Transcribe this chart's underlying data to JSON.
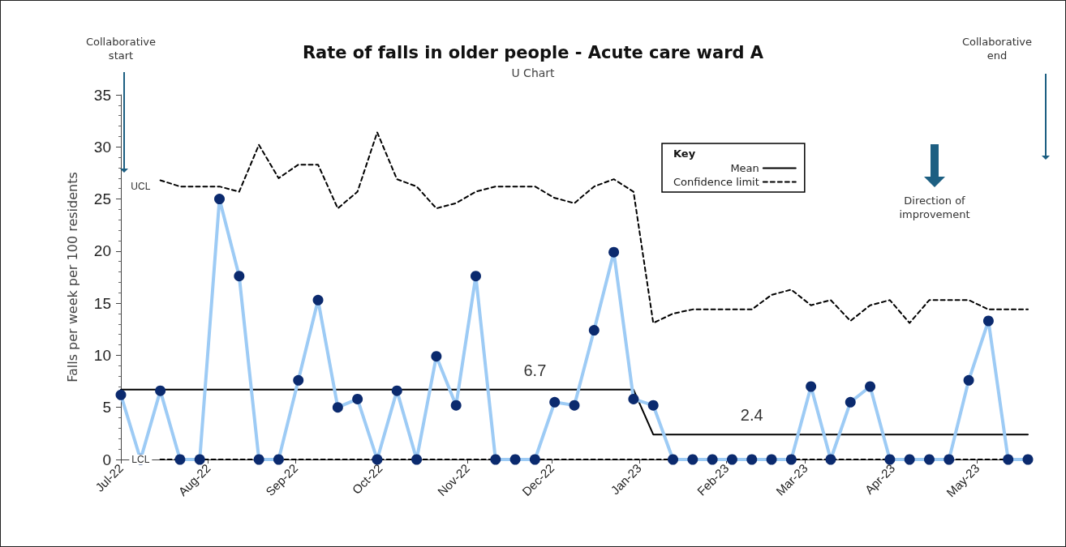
{
  "chart_data": {
    "type": "line",
    "title": "Rate of falls in older people - Acute care ward A",
    "subtitle": "U Chart",
    "ylabel": "Falls per week per 100 residents",
    "legend_title": "Key",
    "legend": "top right",
    "grid": false,
    "x": [
      "2022-07-01",
      "2022-07-08",
      "2022-07-15",
      "2022-07-22",
      "2022-07-29",
      "2022-08-05",
      "2022-08-12",
      "2022-08-19",
      "2022-08-26",
      "2022-09-02",
      "2022-09-09",
      "2022-09-16",
      "2022-09-23",
      "2022-09-30",
      "2022-10-07",
      "2022-10-14",
      "2022-10-21",
      "2022-10-28",
      "2022-11-04",
      "2022-11-11",
      "2022-11-18",
      "2022-11-25",
      "2022-12-02",
      "2022-12-09",
      "2022-12-16",
      "2022-12-23",
      "2022-12-30",
      "2023-01-06",
      "2023-01-13",
      "2023-01-20",
      "2023-01-27",
      "2023-02-03",
      "2023-02-10",
      "2023-02-17",
      "2023-02-24",
      "2023-03-03",
      "2023-03-10",
      "2023-03-17",
      "2023-03-24",
      "2023-03-31",
      "2023-04-07",
      "2023-04-14",
      "2023-04-21",
      "2023-04-28",
      "2023-05-05",
      "2023-05-12",
      "2023-05-19"
    ],
    "xlim": [
      "2022-07-01",
      "2023-05-19"
    ],
    "xticks": [
      {
        "value": "2022-07-01",
        "label": "Jul-22"
      },
      {
        "value": "2022-08-01",
        "label": "Aug-22"
      },
      {
        "value": "2022-09-01",
        "label": "Sep-22"
      },
      {
        "value": "2022-10-01",
        "label": "Oct-22"
      },
      {
        "value": "2022-11-01",
        "label": "Nov-22"
      },
      {
        "value": "2022-12-01",
        "label": "Dec-22"
      },
      {
        "value": "2023-01-01",
        "label": "Jan-23"
      },
      {
        "value": "2023-02-01",
        "label": "Feb-23"
      },
      {
        "value": "2023-03-01",
        "label": "Mar-23"
      },
      {
        "value": "2023-04-01",
        "label": "Apr-23"
      },
      {
        "value": "2023-05-01",
        "label": "May-23"
      }
    ],
    "ylim": [
      0,
      35
    ],
    "yticks": [
      0,
      5,
      10,
      15,
      20,
      25,
      30,
      35
    ],
    "series": [
      {
        "color": "#0b2a6e",
        "marker": "circle",
        "line_style": "solid",
        "values": [
          6.2,
          0,
          6.6,
          0,
          0,
          25,
          17.6,
          0,
          0,
          7.6,
          15.3,
          5.0,
          5.8,
          0,
          6.6,
          0,
          9.9,
          5.2,
          17.6,
          0,
          0,
          0,
          5.5,
          5.2,
          12.4,
          19.9,
          5.8,
          5.2,
          0,
          0,
          0,
          0,
          0,
          0,
          0,
          7.0,
          0,
          5.5,
          7.0,
          0,
          0,
          0,
          0,
          7.6,
          13.3,
          0,
          0
        ]
      },
      {
        "name": "Mean",
        "color": "#000000",
        "marker": "none",
        "line_style": "solid",
        "values": [
          6.7,
          6.7,
          6.7,
          6.7,
          6.7,
          6.7,
          6.7,
          6.7,
          6.7,
          6.7,
          6.7,
          6.7,
          6.7,
          6.7,
          6.7,
          6.7,
          6.7,
          6.7,
          6.7,
          6.7,
          6.7,
          6.7,
          6.7,
          6.7,
          6.7,
          6.7,
          6.7,
          2.4,
          2.4,
          2.4,
          2.4,
          2.4,
          2.4,
          2.4,
          2.4,
          2.4,
          2.4,
          2.4,
          2.4,
          2.4,
          2.4,
          2.4,
          2.4,
          2.4,
          2.4,
          2.4,
          2.4
        ]
      },
      {
        "name": "Confidence limit",
        "color": "#000000",
        "marker": "none",
        "line_style": "dashed",
        "values": [
          null,
          null,
          26.8,
          26.2,
          26.2,
          26.2,
          25.7,
          30.2,
          27.0,
          28.3,
          28.3,
          24.1,
          25.7,
          31.4,
          26.9,
          26.2,
          24.1,
          24.6,
          25.7,
          26.2,
          26.2,
          26.2,
          25.1,
          24.6,
          26.2,
          26.9,
          25.7,
          13.1,
          14.0,
          14.4,
          14.4,
          14.4,
          14.4,
          15.8,
          16.3,
          14.8,
          15.3,
          13.3,
          14.8,
          15.3,
          13.1,
          15.3,
          15.3,
          15.3,
          14.4,
          14.4,
          14.4
        ]
      },
      {
        "color": "#000000",
        "marker": "none",
        "line_style": "dashed",
        "values": [
          null,
          null,
          0,
          0,
          0,
          0,
          0,
          0,
          0,
          0,
          0,
          0,
          0,
          0,
          0,
          0,
          0,
          0,
          0,
          0,
          0,
          0,
          0,
          0,
          0,
          0,
          0,
          0,
          0,
          0,
          0,
          0,
          0,
          0,
          0,
          0,
          0,
          0,
          0,
          0,
          0,
          0,
          0,
          0,
          0,
          0,
          0
        ]
      }
    ],
    "annotations": [
      "Collaborative start",
      "Collaborative end",
      "Direction of improvement",
      {
        "text": "UCL",
        "x": "2022-07-08",
        "y": 26.2
      },
      {
        "text": "LCL",
        "x": "2022-07-08",
        "y": 0
      },
      {
        "text": "6.7",
        "x": "2022-11-25",
        "y": 6.7
      },
      {
        "text": "2.4",
        "x": "2023-02-10",
        "y": 2.4
      }
    ]
  }
}
